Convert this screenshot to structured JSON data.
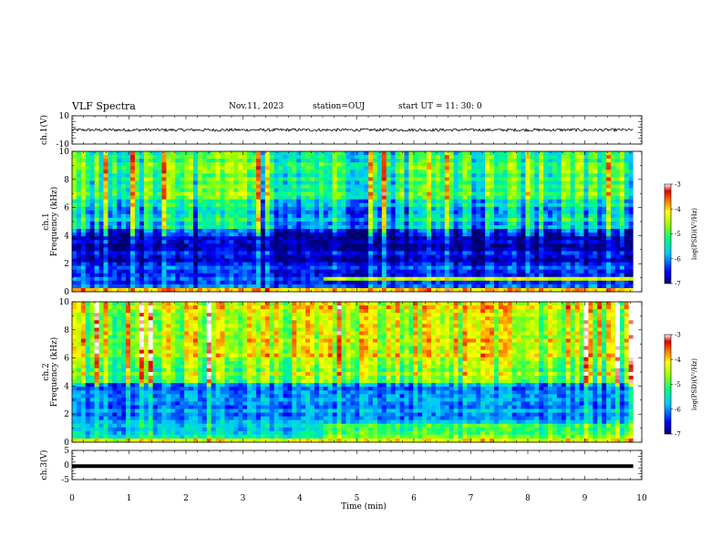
{
  "header": {
    "title": "VLF Spectra",
    "date": "Nov.11, 2023",
    "station": "station=OUJ",
    "start": "start  UT =  11: 30: 0"
  },
  "chart_data": [
    {
      "type": "line",
      "panel": "ch1-waveform",
      "ylabel": "ch.1(V)",
      "ylim": [
        -10,
        10
      ],
      "yticks": [
        "10",
        "-10"
      ],
      "xlim": [
        0,
        10
      ],
      "trace_level": 0,
      "trace_amplitude": 2,
      "end_time": 9.85
    },
    {
      "type": "heatmap",
      "panel": "ch1-spectrogram",
      "ylabel": "ch.1",
      "ylabel2": "Frequency (kHz)",
      "ylim": [
        0,
        10
      ],
      "yticks": [
        "0",
        "2",
        "4",
        "6",
        "8",
        "10"
      ],
      "xlim": [
        0,
        10
      ],
      "end_time": 9.85,
      "colorbar": {
        "label": "log(PSD)(V²/Hz)",
        "range": [
          -7,
          -3
        ],
        "ticks": [
          "-3",
          "-4",
          "-5",
          "-6",
          "-7"
        ]
      }
    },
    {
      "type": "heatmap",
      "panel": "ch2-spectrogram",
      "ylabel": "ch.2",
      "ylabel2": "Frequency (kHz)",
      "ylim": [
        0,
        10
      ],
      "yticks": [
        "0",
        "2",
        "4",
        "6",
        "8",
        "10"
      ],
      "xlim": [
        0,
        10
      ],
      "end_time": 9.85,
      "colorbar": {
        "label": "log(PSD)(V²/Hz)",
        "range": [
          -7,
          -3
        ],
        "ticks": [
          "-3",
          "-4",
          "-5",
          "-6",
          "-7"
        ]
      }
    },
    {
      "type": "line",
      "panel": "ch3-waveform",
      "ylabel": "ch.3(V)",
      "ylim": [
        -5,
        5
      ],
      "yticks": [
        "5",
        "0",
        "-5"
      ],
      "xlim": [
        0,
        10
      ],
      "trace_level": -0.4,
      "end_time": 9.85,
      "xlabel": "Time (min)",
      "xticks": [
        "0",
        "1",
        "2",
        "3",
        "4",
        "5",
        "6",
        "7",
        "8",
        "9",
        "10"
      ]
    }
  ]
}
